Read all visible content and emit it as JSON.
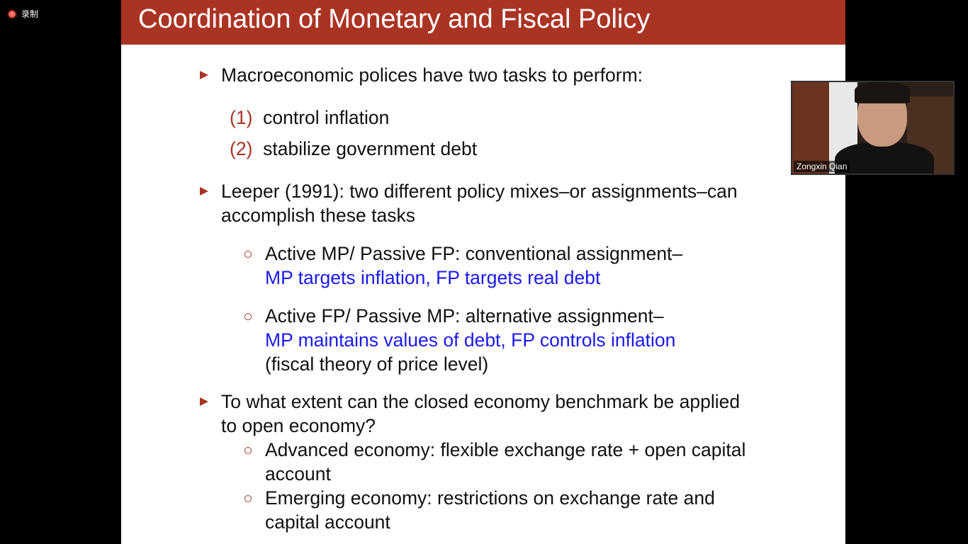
{
  "recording": {
    "label": "录制"
  },
  "slide": {
    "title": "Coordination of Monetary and Fiscal Policy",
    "colors": {
      "header": "#a93424",
      "highlight": "#1a1aee"
    },
    "bullet1": {
      "text": "Macroeconomic polices have two tasks to perform:",
      "items": [
        {
          "num": "(1)",
          "text": "control inflation"
        },
        {
          "num": "(2)",
          "text": "stabilize government debt"
        }
      ]
    },
    "bullet2": {
      "line1": "Leeper (1991): two different policy mixes–or assignments–can",
      "line2": "accomplish these tasks",
      "sub1": {
        "line1": "Active MP/ Passive FP: conventional assignment–",
        "line2": "MP targets inflation, FP targets real debt"
      },
      "sub2": {
        "line1": "Active FP/ Passive MP: alternative assignment–",
        "line2": "MP maintains values of debt, FP controls inflation",
        "line3": "(fiscal theory of price level)"
      }
    },
    "bullet3": {
      "line1": "To what extent can the closed economy benchmark be applied",
      "line2": "to open economy?",
      "sub1": {
        "line1": "Advanced economy: flexible exchange rate + open capital",
        "line2": "account"
      },
      "sub2": {
        "line1": "Emerging economy: restrictions on exchange rate and",
        "line2": "capital account"
      }
    }
  },
  "video": {
    "participant_name": "Zongxin Qian"
  }
}
